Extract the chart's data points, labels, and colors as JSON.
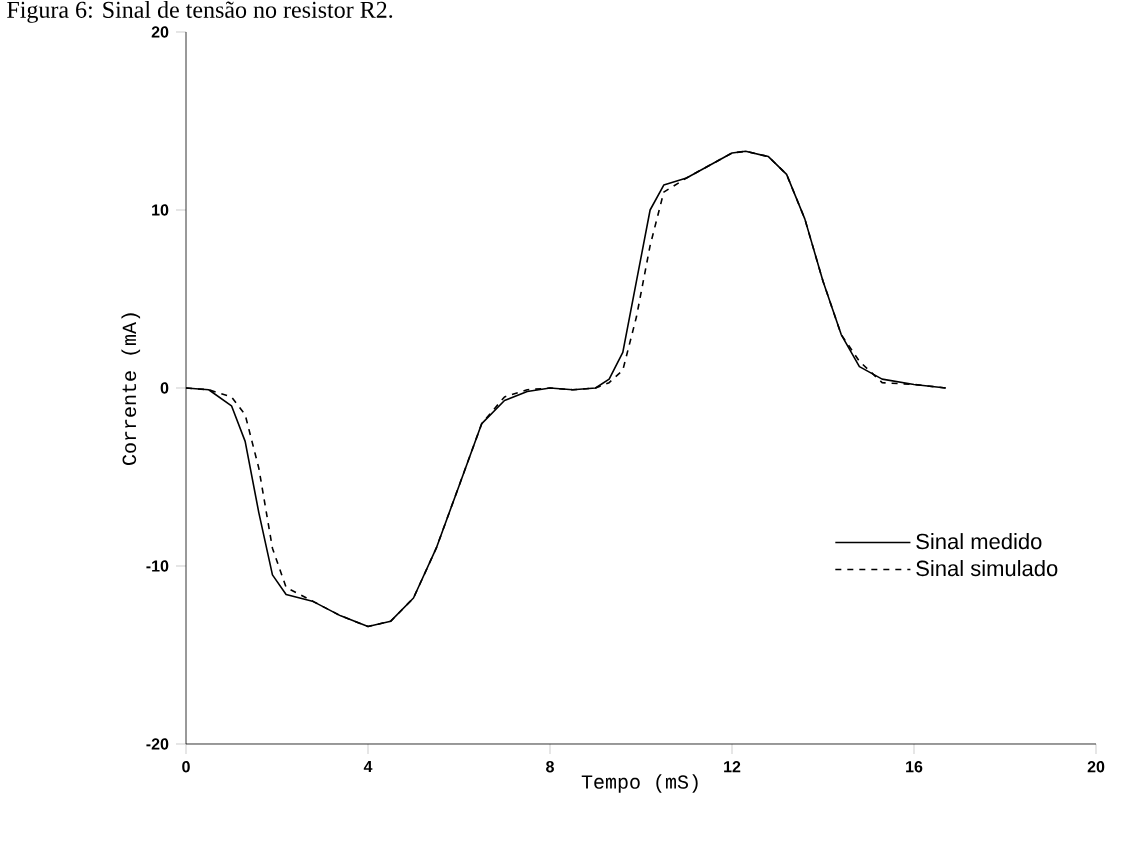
{
  "chart_data": {
    "type": "line",
    "title": "Figura 6: Sinal de tensão no resistor R2.",
    "xlabel": "Tempo  (mS)",
    "ylabel": "Corrente  (mA)",
    "xlim": [
      0,
      20
    ],
    "ylim": [
      -20,
      20
    ],
    "xticks": [
      0,
      4,
      8,
      12,
      16,
      20
    ],
    "yticks": [
      -20,
      -10,
      0,
      10,
      20
    ],
    "legend": "bottom right",
    "series": [
      {
        "name": "Sinal medido",
        "color": "#000000",
        "line_style": "solid",
        "x": [
          0,
          0.5,
          1.0,
          1.3,
          1.6,
          1.9,
          2.2,
          2.8,
          3.4,
          4.0,
          4.5,
          5.0,
          5.5,
          6.0,
          6.5,
          7.0,
          7.5,
          8.0,
          8.5,
          9.0,
          9.3,
          9.6,
          9.9,
          10.2,
          10.5,
          11.0,
          11.5,
          12.0,
          12.3,
          12.8,
          13.2,
          13.6,
          14.0,
          14.4,
          14.8,
          15.3,
          16.0,
          16.7
        ],
        "values": [
          0,
          -0.1,
          -1.0,
          -3,
          -7,
          -10.5,
          -11.6,
          -12,
          -12.8,
          -13.4,
          -13.1,
          -11.8,
          -9,
          -5.5,
          -2,
          -0.7,
          -0.2,
          0,
          -0.1,
          0,
          0.5,
          2,
          6,
          10,
          11.4,
          11.8,
          12.5,
          13.2,
          13.3,
          13,
          12,
          9.5,
          6,
          3,
          1.2,
          0.5,
          0.2,
          0
        ]
      },
      {
        "name": "Sinal simulado",
        "color": "#000000",
        "line_style": "dashed",
        "x": [
          0,
          0.5,
          1.0,
          1.3,
          1.6,
          1.9,
          2.2,
          2.8,
          3.4,
          4.0,
          4.5,
          5.0,
          5.5,
          6.0,
          6.5,
          7.0,
          7.5,
          8.0,
          8.5,
          9.0,
          9.3,
          9.6,
          9.9,
          10.2,
          10.5,
          11.0,
          11.5,
          12.0,
          12.3,
          12.8,
          13.2,
          13.6,
          14.0,
          14.4,
          14.8,
          15.3,
          16.0,
          16.7
        ],
        "values": [
          0,
          -0.1,
          -0.5,
          -1.5,
          -4.5,
          -9,
          -11.2,
          -12,
          -12.8,
          -13.4,
          -13.1,
          -11.8,
          -9,
          -5.5,
          -2,
          -0.5,
          -0.1,
          0,
          -0.1,
          0,
          0.3,
          1,
          4,
          8,
          11,
          11.8,
          12.5,
          13.2,
          13.3,
          13,
          12,
          9.5,
          6,
          3,
          1.5,
          0.3,
          0.2,
          0
        ]
      }
    ]
  }
}
